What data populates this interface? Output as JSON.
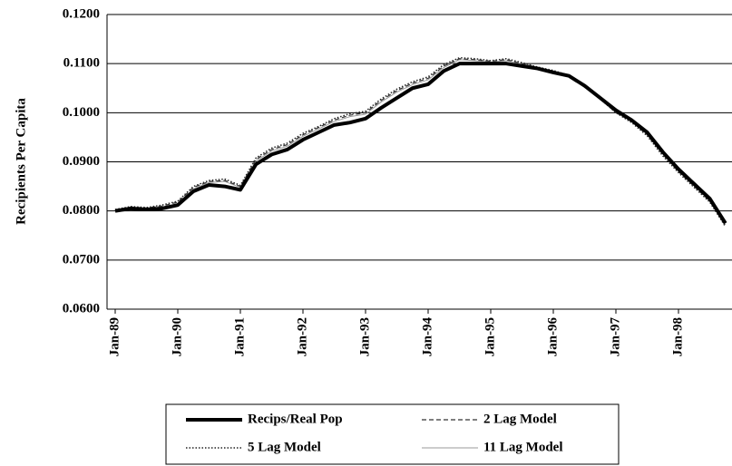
{
  "chart_data": {
    "type": "line",
    "y_label": "Recipients Per Capita",
    "categories": [
      "Jan-89",
      null,
      null,
      null,
      "Jan-90",
      null,
      null,
      null,
      "Jan-91",
      null,
      null,
      null,
      "Jan-92",
      null,
      null,
      null,
      "Jan-93",
      null,
      null,
      null,
      "Jan-94",
      null,
      null,
      null,
      "Jan-95",
      null,
      null,
      null,
      "Jan-96",
      null,
      null,
      null,
      "Jan-97",
      null,
      null,
      null,
      "Jan-98",
      null,
      null,
      null
    ],
    "series": [
      {
        "name": "Recips/Real Pop",
        "color": "#000000",
        "style": "thick",
        "values": [
          0.08,
          0.0805,
          0.0803,
          0.0805,
          0.0812,
          0.084,
          0.0853,
          0.085,
          0.0843,
          0.0895,
          0.0915,
          0.0925,
          0.0945,
          0.096,
          0.0975,
          0.098,
          0.0988,
          0.101,
          0.103,
          0.105,
          0.1058,
          0.1085,
          0.11,
          0.11,
          0.11,
          0.11,
          0.1095,
          0.109,
          0.1082,
          0.1075,
          0.1055,
          0.103,
          0.1005,
          0.0985,
          0.096,
          0.092,
          0.0885,
          0.0855,
          0.0825,
          0.0775
        ]
      },
      {
        "name": "2 Lag Model",
        "color": "#333333",
        "style": "dashed",
        "values": [
          0.0802,
          0.0808,
          0.0806,
          0.081,
          0.0818,
          0.0848,
          0.086,
          0.0862,
          0.085,
          0.0905,
          0.0925,
          0.0935,
          0.0955,
          0.097,
          0.0985,
          0.0995,
          0.1,
          0.1025,
          0.1045,
          0.106,
          0.107,
          0.1095,
          0.111,
          0.1108,
          0.1105,
          0.1108,
          0.11,
          0.1092,
          0.1085,
          0.1075,
          0.1052,
          0.1028,
          0.1,
          0.0982,
          0.0955,
          0.0915,
          0.088,
          0.085,
          0.082,
          0.077
        ]
      },
      {
        "name": "5 Lag Model",
        "color": "#222222",
        "style": "dotted",
        "values": [
          0.0803,
          0.0809,
          0.0807,
          0.0812,
          0.082,
          0.085,
          0.0862,
          0.0865,
          0.0852,
          0.0908,
          0.0928,
          0.0938,
          0.0958,
          0.0972,
          0.0988,
          0.0998,
          0.1003,
          0.1028,
          0.1048,
          0.1063,
          0.1073,
          0.1098,
          0.1112,
          0.111,
          0.1106,
          0.111,
          0.1102,
          0.1093,
          0.1086,
          0.1076,
          0.1053,
          0.1028,
          0.1,
          0.098,
          0.0953,
          0.0912,
          0.0878,
          0.0848,
          0.0818,
          0.0768
        ]
      },
      {
        "name": "11 Lag Model",
        "color": "#999999",
        "style": "thin",
        "values": [
          0.0801,
          0.0807,
          0.0805,
          0.0808,
          0.0815,
          0.0845,
          0.0858,
          0.086,
          0.0848,
          0.0902,
          0.0922,
          0.0932,
          0.0952,
          0.0967,
          0.0982,
          0.0992,
          0.0997,
          0.1022,
          0.1042,
          0.1057,
          0.1067,
          0.1092,
          0.1108,
          0.1106,
          0.1103,
          0.1106,
          0.1099,
          0.1091,
          0.1084,
          0.1075,
          0.1053,
          0.1029,
          0.1002,
          0.0983,
          0.0957,
          0.0917,
          0.0882,
          0.0852,
          0.0822,
          0.0772
        ]
      }
    ],
    "ylim": [
      0.06,
      0.12
    ],
    "yticks": [
      {
        "value": 0.06,
        "label": "0.0600"
      },
      {
        "value": 0.07,
        "label": "0.0700"
      },
      {
        "value": 0.08,
        "label": "0.0800"
      },
      {
        "value": 0.09,
        "label": "0.0900"
      },
      {
        "value": 0.1,
        "label": "0.1000"
      },
      {
        "value": 0.11,
        "label": "0.1100"
      },
      {
        "value": 0.12,
        "label": "0.1200"
      }
    ],
    "grid": true
  }
}
